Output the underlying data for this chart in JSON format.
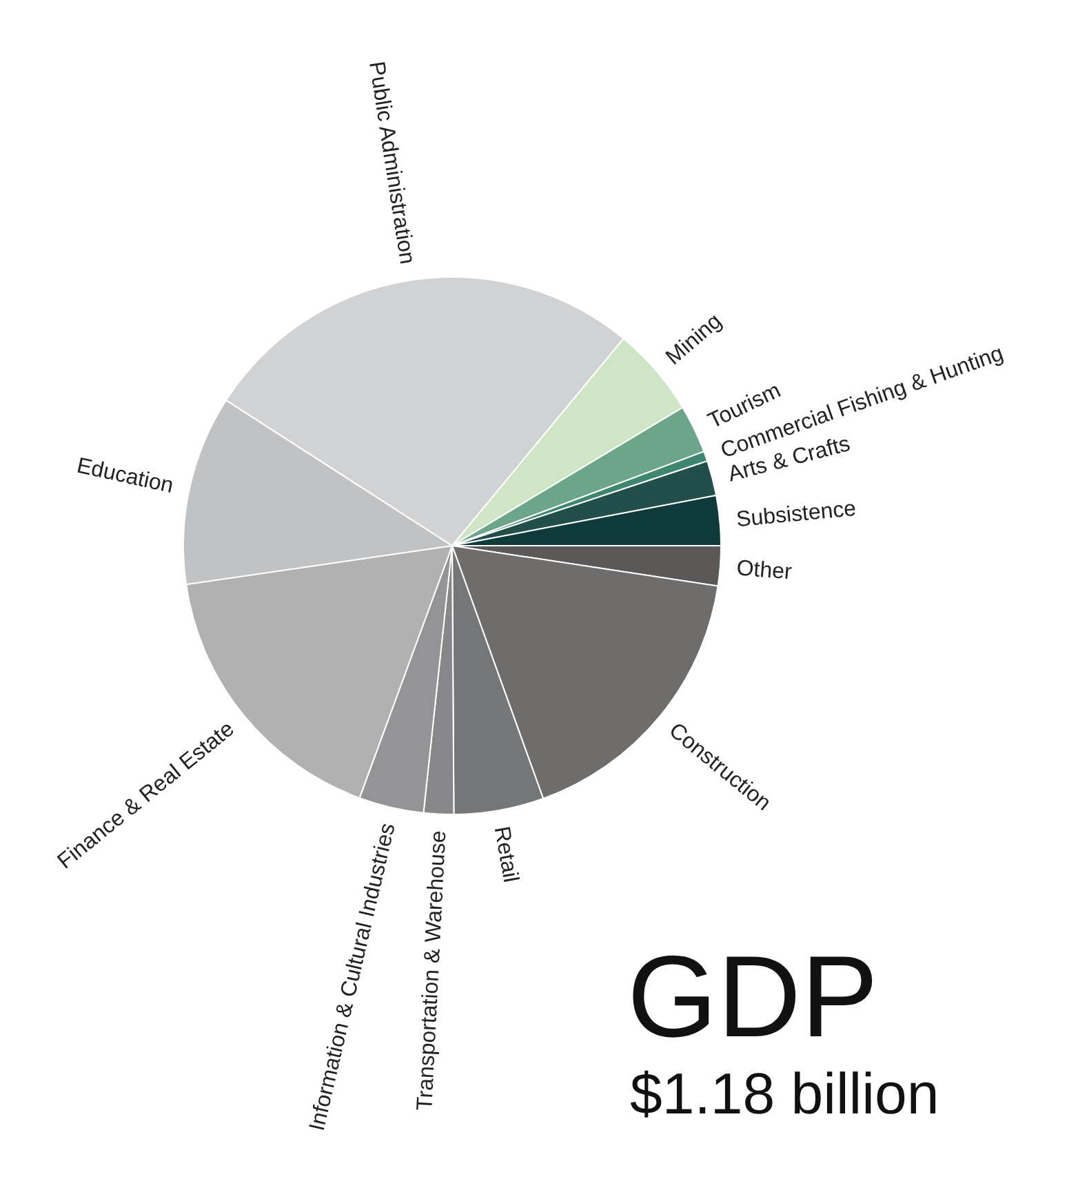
{
  "chart_data": {
    "type": "pie",
    "title": "GDP",
    "subtitle": "$1.18 billion",
    "categories": [
      "Other",
      "Construction",
      "Retail",
      "Transportation & Warehouse",
      "Information & Cultural Industries",
      "Finance & Real Estate",
      "Education",
      "Public Administration",
      "Mining",
      "Tourism",
      "Commercial Fishing & Hunting",
      "Arts & Crafts",
      "Subsistence"
    ],
    "values": [
      2.4,
      17.1,
      5.4,
      1.8,
      3.9,
      17.1,
      11.4,
      26.9,
      5.4,
      2.9,
      0.6,
      2.1,
      3.0
    ],
    "colors": [
      "#5b5858",
      "#6f6c6c",
      "#757677",
      "#87878a",
      "#949496",
      "#b1b1b2",
      "#c1c2c4",
      "#d1d2d4",
      "#d0e4c6",
      "#6da58a",
      "#3f8670",
      "#234f4a",
      "#10393a"
    ]
  }
}
